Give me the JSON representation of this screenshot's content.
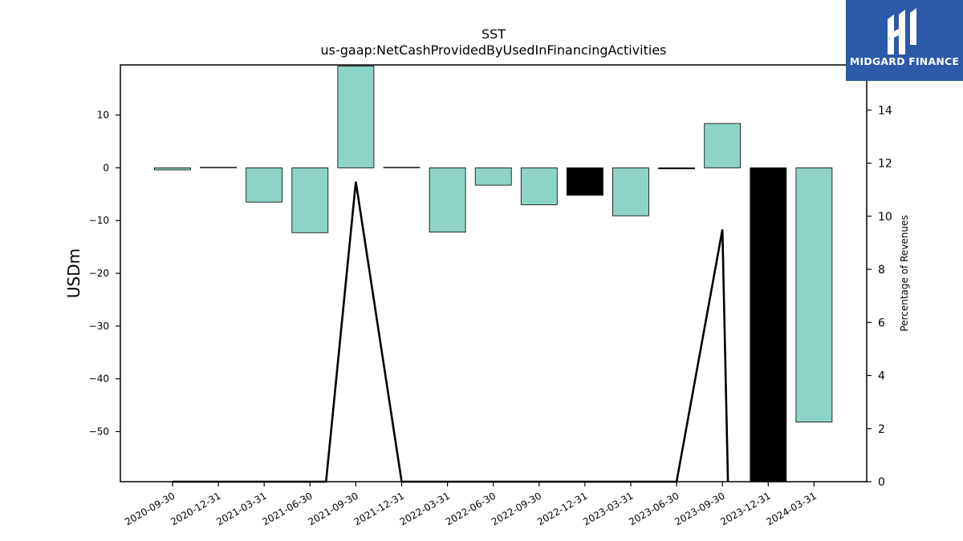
{
  "chart_data": {
    "type": "bar",
    "title": "SST",
    "subtitle": "us-gaap:NetCashProvidedByUsedInFinancingActivities",
    "ylabel": "USDm",
    "y2label": "Percentage of Revenues",
    "categories": [
      "2020-09-30",
      "2020-12-31",
      "2021-03-31",
      "2021-06-30",
      "2021-09-30",
      "2021-12-31",
      "2022-03-31",
      "2022-06-30",
      "2022-09-30",
      "2022-12-31",
      "2023-03-31",
      "2023-06-30",
      "2023-09-30",
      "2023-12-31",
      "2024-03-31"
    ],
    "series": [
      {
        "type": "bar",
        "values": [
          -0.4,
          0.1,
          -6.5,
          -12.3,
          19.3,
          0.1,
          -12.2,
          -3.3,
          -7.0,
          -5.2,
          -9.1,
          -0.2,
          8.4,
          -60.0,
          -48.2
        ],
        "colors": [
          "#8dd3c7",
          "#8dd3c7",
          "#8dd3c7",
          "#8dd3c7",
          "#8dd3c7",
          "#8dd3c7",
          "#8dd3c7",
          "#8dd3c7",
          "#8dd3c7",
          "#000000",
          "#8dd3c7",
          "#000000",
          "#8dd3c7",
          "#000000",
          "#8dd3c7"
        ]
      },
      {
        "type": "line",
        "axis": "right",
        "points": [
          [
            0,
            0.0
          ],
          [
            3.35,
            0.0
          ],
          [
            4,
            11.3
          ],
          [
            5,
            0.0
          ],
          [
            11,
            0.0
          ],
          [
            12,
            9.5
          ],
          [
            12.12,
            0.0
          ]
        ]
      }
    ],
    "ylim": [
      -59.5,
      19.5
    ],
    "yticks": [
      10,
      0,
      -10,
      -20,
      -30,
      -40,
      -50
    ],
    "y2lim": [
      0,
      15.7
    ],
    "y2ticks": [
      0,
      2,
      4,
      6,
      8,
      10,
      12,
      14
    ],
    "grid": false,
    "legend": "none"
  },
  "logo": {
    "text": "MIDGARD FINANCE",
    "color": "#2b5aa8"
  }
}
